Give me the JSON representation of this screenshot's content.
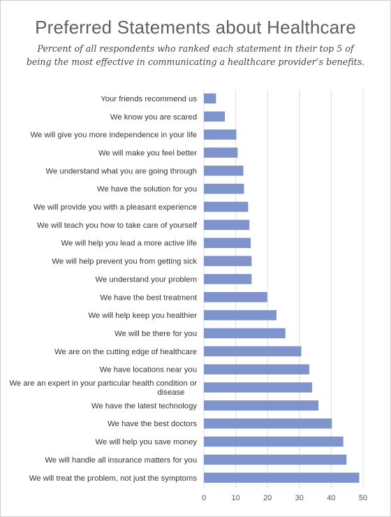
{
  "title": "Preferred Statements about Healthcare",
  "subtitle_lines": [
    "Percent of all respondents who ranked each statement in their top 5 of",
    "being the most effective in communicating a healthcare provider’s benefits."
  ],
  "colors": {
    "bar": "#7f93cc",
    "grid": "#dcdcdc",
    "text": "#333333",
    "title": "#5f5f5f"
  },
  "chart_data": {
    "type": "bar",
    "orientation": "horizontal",
    "title": "Preferred Statements about Healthcare",
    "categories": [
      "Your friends recommend us",
      "We know you are scared",
      "We will give you more independence in your life",
      "We will make you feel better",
      "We understand what you are going through",
      "We have the solution for you",
      "We will provide you with a pleasant experience",
      "We will teach you how to take care of yourself",
      "We will help you lead a more active life",
      "We will help prevent you from getting sick",
      "We understand your problem",
      "We have the best treatment",
      "We will help keep you healthier",
      "We will be there for you",
      "We are on the cutting edge of healthcare",
      "We have locations near you",
      "We are an expert in your particular health condition or disease",
      "We have the latest technology",
      "We have the best doctors",
      "We will help you save money",
      "We will handle all insurance matters for you",
      "We will treat the problem, not just the symptoms"
    ],
    "category_label_lines": [
      [
        "Your friends recommend us"
      ],
      [
        "We know you are scared"
      ],
      [
        "We will give you more independence in your life"
      ],
      [
        "We will make you feel better"
      ],
      [
        "We understand what you are going through"
      ],
      [
        "We have the solution for you"
      ],
      [
        "We will provide you with a pleasant experience"
      ],
      [
        "We will teach you how to take care of yourself"
      ],
      [
        "We will help you lead a more active life"
      ],
      [
        "We will help prevent you from getting sick"
      ],
      [
        "We understand your problem"
      ],
      [
        "We have the best treatment"
      ],
      [
        "We will help keep you healthier"
      ],
      [
        "We will be there for you"
      ],
      [
        "We are on the cutting edge of healthcare"
      ],
      [
        "We have locations near you"
      ],
      [
        "We are an expert in your particular health condition or",
        "disease"
      ],
      [
        "We have the latest technology"
      ],
      [
        "We have the best doctors"
      ],
      [
        "We will help you save money"
      ],
      [
        "We will handle all insurance matters for you"
      ],
      [
        "We will treat the problem, not just the symptoms"
      ]
    ],
    "values": [
      3.8,
      6.6,
      10.2,
      10.6,
      12.4,
      12.6,
      13.9,
      14.3,
      14.7,
      15.0,
      15.0,
      19.9,
      22.8,
      25.6,
      30.6,
      33.1,
      34.0,
      36.0,
      40.2,
      43.8,
      44.8,
      48.8
    ],
    "xlim": [
      0,
      50
    ],
    "xticks": [
      0,
      10,
      20,
      30,
      40,
      50
    ],
    "grid": true,
    "legend": false
  }
}
